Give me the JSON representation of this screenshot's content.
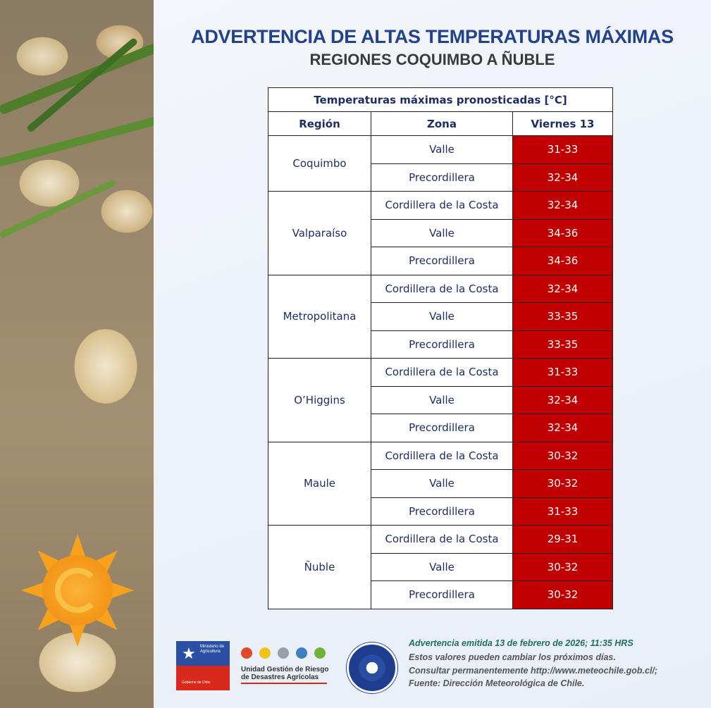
{
  "header": {
    "title": "ADVERTENCIA DE ALTAS TEMPERATURAS MÁXIMAS",
    "subtitle": "REGIONES COQUIMBO A ÑUBLE"
  },
  "table": {
    "caption": "Temperaturas máximas pronosticadas [°C]",
    "columns": [
      "Región",
      "Zona",
      "Viernes 13"
    ],
    "regions": [
      {
        "name": "Coquimbo",
        "rows": [
          {
            "zone": "Valle",
            "temp": "31-33"
          },
          {
            "zone": "Precordillera",
            "temp": "32-34"
          }
        ]
      },
      {
        "name": "Valparaíso",
        "rows": [
          {
            "zone": "Cordillera de la Costa",
            "temp": "32-34"
          },
          {
            "zone": "Valle",
            "temp": "34-36"
          },
          {
            "zone": "Precordillera",
            "temp": "34-36"
          }
        ]
      },
      {
        "name": "Metropolitana",
        "rows": [
          {
            "zone": "Cordillera de la Costa",
            "temp": "32-34"
          },
          {
            "zone": "Valle",
            "temp": "33-35"
          },
          {
            "zone": "Precordillera",
            "temp": "33-35"
          }
        ]
      },
      {
        "name": "O’Higgins",
        "rows": [
          {
            "zone": "Cordillera de la Costa",
            "temp": "31-33"
          },
          {
            "zone": "Valle",
            "temp": "32-34"
          },
          {
            "zone": "Precordillera",
            "temp": "32-34"
          }
        ]
      },
      {
        "name": "Maule",
        "rows": [
          {
            "zone": "Cordillera de la Costa",
            "temp": "30-32"
          },
          {
            "zone": "Valle",
            "temp": "30-32"
          },
          {
            "zone": "Precordillera",
            "temp": "31-33"
          }
        ]
      },
      {
        "name": "Ñuble",
        "rows": [
          {
            "zone": "Cordillera de la Costa",
            "temp": "29-31"
          },
          {
            "zone": "Valle",
            "temp": "30-32"
          },
          {
            "zone": "Precordillera",
            "temp": "30-32"
          }
        ]
      }
    ]
  },
  "footer": {
    "logos": {
      "ministerio": {
        "line1": "Ministerio de",
        "line2": "Agricultura",
        "gob": "Gobierno de Chile"
      },
      "ugr": {
        "line1": "Unidad Gestión de Riesgo",
        "line2": "de Desastres Agrícolas"
      },
      "dmc_seal": "dmc-seal-icon"
    },
    "notes": [
      "Advertencia emitida 13 de febrero de 2026; 11:35 HRS",
      "Estos valores pueden cambiar los próximos días.",
      "Consultar permanentemente http://www.meteochile.gob.cl/;",
      "Fuente: Dirección Meteorológica de Chile."
    ]
  },
  "colors": {
    "title": "#22428c",
    "subtitle": "#3a3a3a",
    "temp_cell": "#c00000",
    "note_highlight": "#1f6f5c"
  }
}
